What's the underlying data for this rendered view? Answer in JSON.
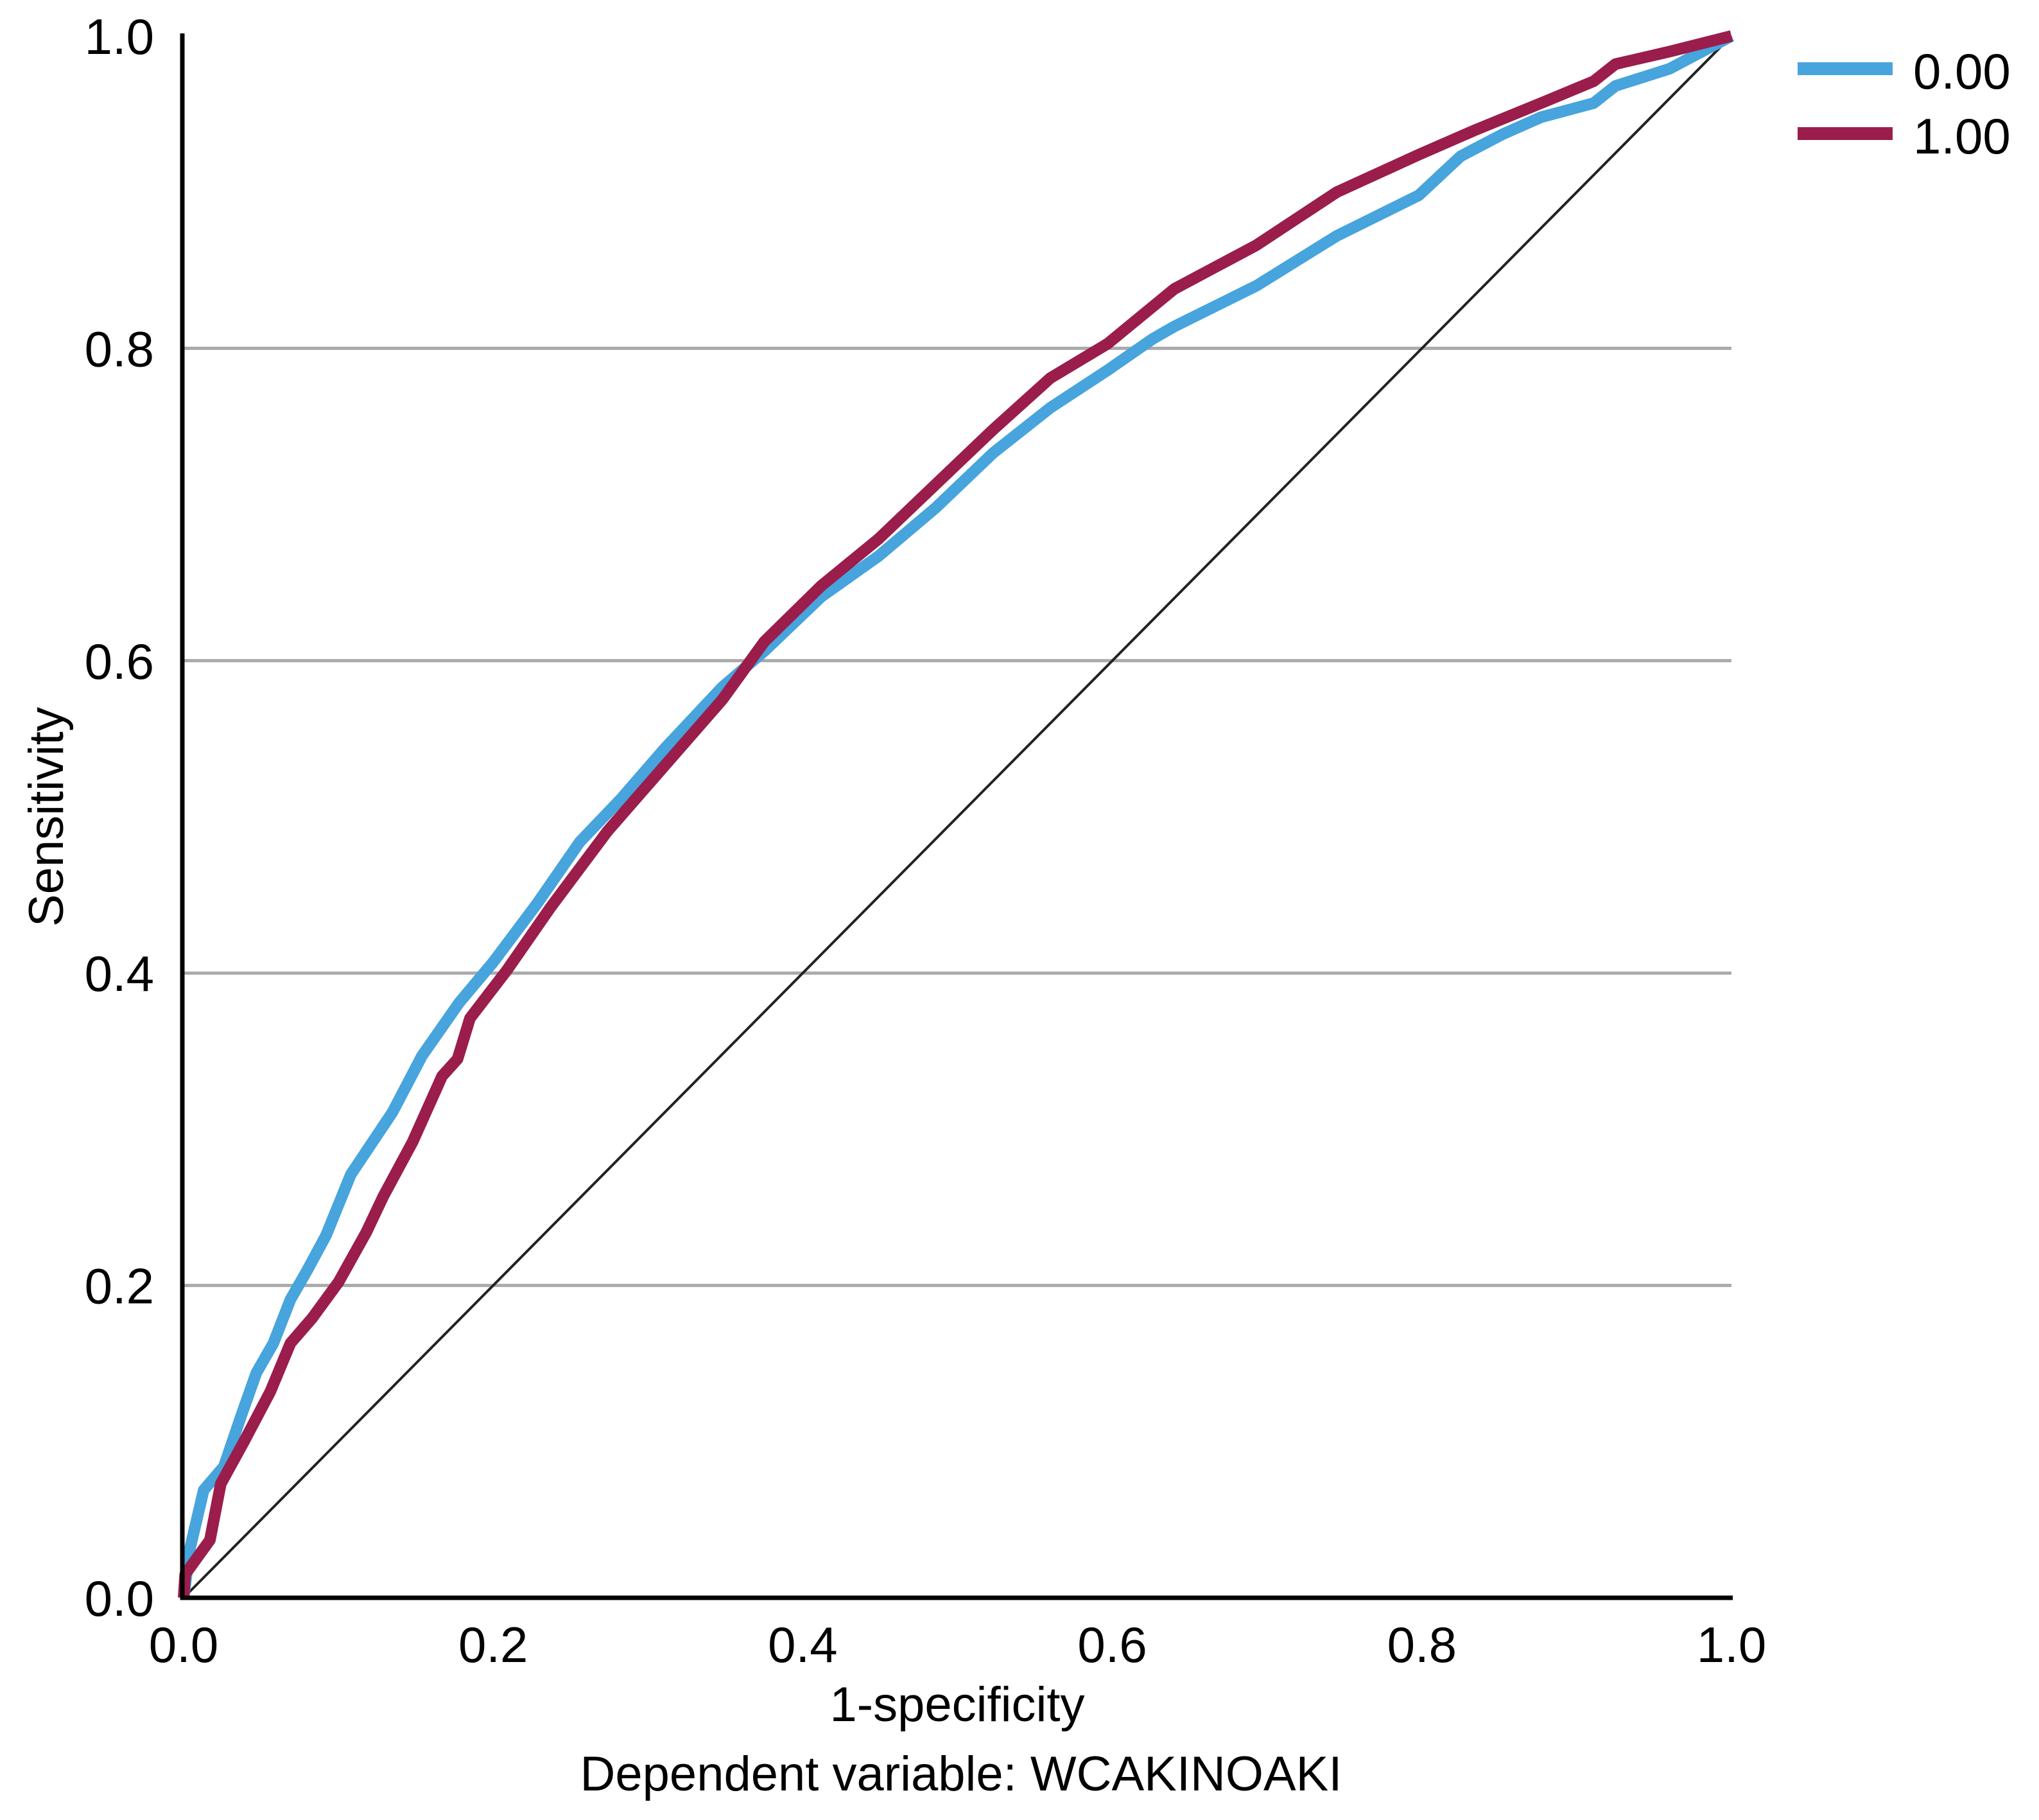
{
  "chart_data": {
    "type": "line",
    "title": "",
    "xlabel": "1-specificity",
    "ylabel": "Sensitivity",
    "footnote": "Dependent variable: WCAKINOAKI",
    "xlim": [
      0,
      1
    ],
    "ylim": [
      0,
      1
    ],
    "grid": "horizontal",
    "legend_position": "top-right",
    "x_ticks": [
      "0.0",
      "0.2",
      "0.4",
      "0.6",
      "0.8",
      "1.0"
    ],
    "y_ticks": [
      "0.0",
      "0.2",
      "0.4",
      "0.6",
      "0.8",
      "1.0"
    ],
    "x_tick_values": [
      0,
      0.2,
      0.4,
      0.6,
      0.8,
      1.0
    ],
    "y_tick_values": [
      0,
      0.2,
      0.4,
      0.6,
      0.8,
      1.0
    ],
    "reference_line": {
      "name": "diagonal",
      "x": [
        0,
        1
      ],
      "y": [
        0,
        1
      ],
      "color": "#222222"
    },
    "series": [
      {
        "name": "0.00",
        "color": "#47a4dc",
        "x": [
          0,
          0.004,
          0.013,
          0.026,
          0.037,
          0.047,
          0.058,
          0.069,
          0.08,
          0.092,
          0.108,
          0.135,
          0.154,
          0.178,
          0.2,
          0.228,
          0.256,
          0.283,
          0.311,
          0.348,
          0.375,
          0.412,
          0.449,
          0.486,
          0.523,
          0.56,
          0.597,
          0.626,
          0.64,
          0.693,
          0.745,
          0.798,
          0.825,
          0.852,
          0.877,
          0.911,
          0.925,
          0.96,
          1.0
        ],
        "y": [
          0,
          0.031,
          0.069,
          0.084,
          0.116,
          0.144,
          0.163,
          0.191,
          0.21,
          0.232,
          0.271,
          0.311,
          0.347,
          0.381,
          0.407,
          0.444,
          0.484,
          0.512,
          0.544,
          0.583,
          0.606,
          0.641,
          0.667,
          0.698,
          0.733,
          0.762,
          0.786,
          0.806,
          0.814,
          0.84,
          0.872,
          0.898,
          0.923,
          0.937,
          0.948,
          0.957,
          0.968,
          0.979,
          1.0
        ]
      },
      {
        "name": "1.00",
        "color": "#9a1d4c",
        "x": [
          0,
          0.001,
          0.017,
          0.024,
          0.039,
          0.056,
          0.069,
          0.083,
          0.1,
          0.118,
          0.129,
          0.148,
          0.167,
          0.177,
          0.185,
          0.209,
          0.237,
          0.274,
          0.311,
          0.348,
          0.375,
          0.412,
          0.449,
          0.486,
          0.523,
          0.56,
          0.597,
          0.64,
          0.693,
          0.745,
          0.798,
          0.835,
          0.877,
          0.911,
          0.925,
          0.96,
          1.0
        ],
        "y": [
          0,
          0.015,
          0.037,
          0.073,
          0.1,
          0.132,
          0.163,
          0.179,
          0.202,
          0.234,
          0.257,
          0.292,
          0.334,
          0.345,
          0.371,
          0.402,
          0.442,
          0.491,
          0.533,
          0.575,
          0.612,
          0.648,
          0.678,
          0.713,
          0.748,
          0.781,
          0.803,
          0.838,
          0.866,
          0.9,
          0.924,
          0.94,
          0.957,
          0.971,
          0.982,
          0.99,
          1.0
        ]
      }
    ]
  }
}
